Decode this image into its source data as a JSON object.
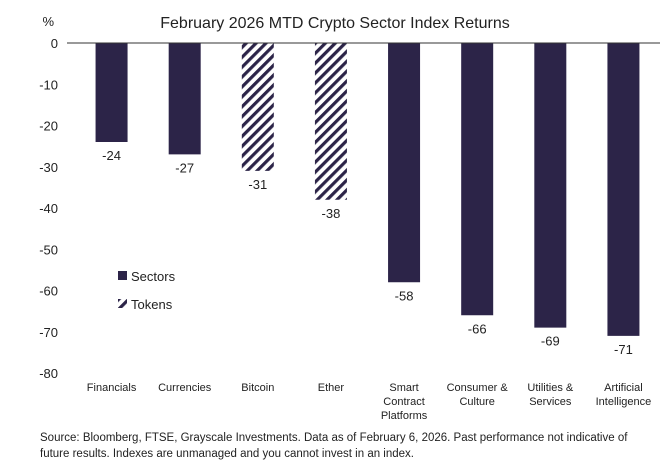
{
  "chart_data": {
    "type": "bar",
    "title": "February 2026 MTD Crypto Sector Index Returns",
    "yunit": "%",
    "ylim": [
      -80,
      0
    ],
    "yticks": [
      0,
      -10,
      -20,
      -30,
      -40,
      -50,
      -60,
      -70,
      -80
    ],
    "categories": [
      [
        "Financials"
      ],
      [
        "Currencies"
      ],
      [
        "Bitcoin"
      ],
      [
        "Ether"
      ],
      [
        "Smart",
        "Contract",
        "Platforms"
      ],
      [
        "Consumer &",
        "Culture"
      ],
      [
        "Utilities &",
        "Services"
      ],
      [
        "Artificial",
        "Intelligence"
      ]
    ],
    "values": [
      -24,
      -27,
      -31,
      -38,
      -58,
      -66,
      -69,
      -71
    ],
    "labels": [
      "-24",
      "-27",
      "-31",
      "-38",
      "-58",
      "-66",
      "-69",
      "-71"
    ],
    "kinds": [
      "sector",
      "sector",
      "token",
      "token",
      "sector",
      "sector",
      "sector",
      "sector"
    ],
    "legend": [
      {
        "name": "Sectors",
        "kind": "sector"
      },
      {
        "name": "Tokens",
        "kind": "token"
      }
    ],
    "legend_position": "bottom-left",
    "grid": false,
    "colors": {
      "bar": "#2c2448",
      "axis": "#333333"
    }
  },
  "source": "Source: Bloomberg, FTSE, Grayscale Investments. Data as of February 6, 2026. Past performance not indicative of future results. Indexes are unmanaged and you cannot invest in an index."
}
